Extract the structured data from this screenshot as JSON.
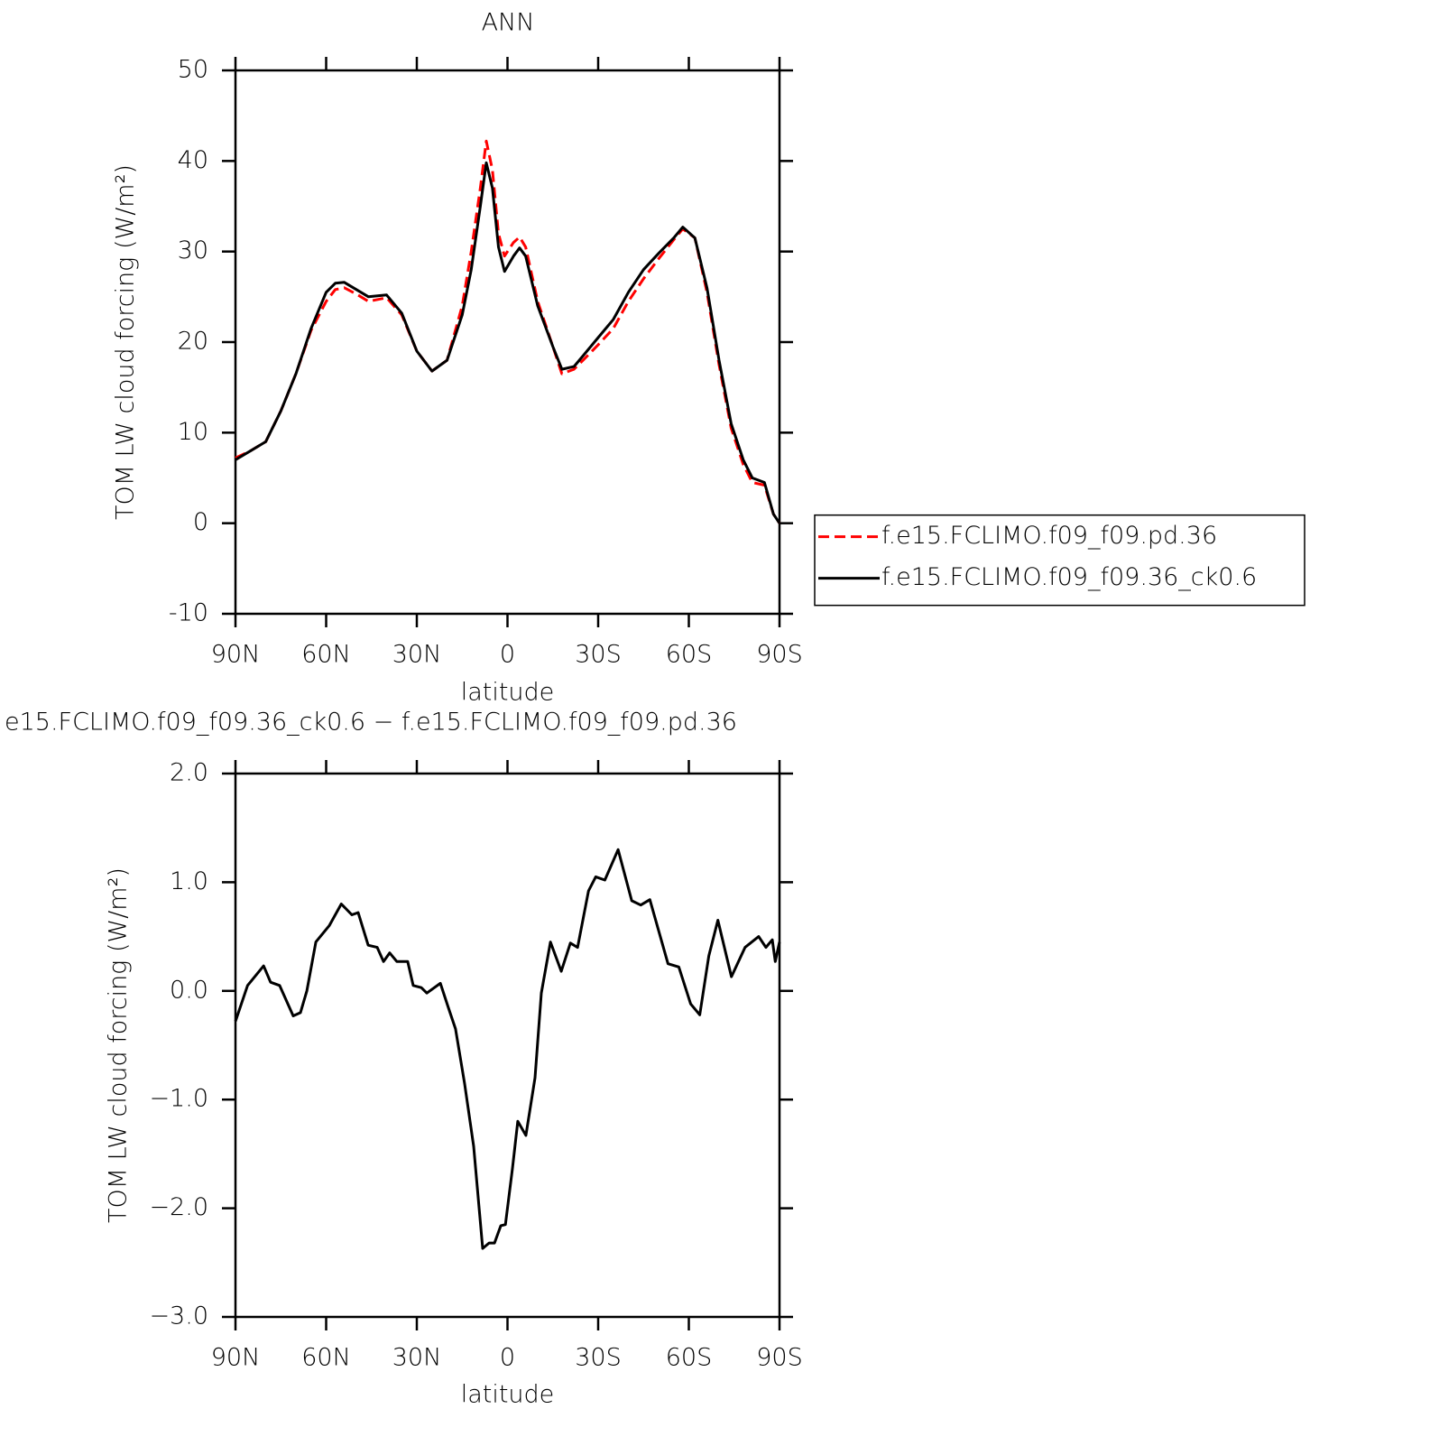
{
  "chart_data": [
    {
      "type": "line",
      "title": "ANN",
      "xlabel": "latitude",
      "ylabel": "TOM LW cloud forcing (W/m²)",
      "x": [
        90,
        85,
        80,
        75,
        70,
        65,
        60,
        57,
        54,
        50,
        46,
        40,
        35,
        30,
        25,
        20,
        15,
        12,
        9,
        7,
        5,
        3,
        1,
        -2,
        -4,
        -6,
        -10,
        -15,
        -18,
        -22,
        -25,
        -30,
        -35,
        -40,
        -45,
        -50,
        -55,
        -58,
        -62,
        -66,
        -70,
        -74,
        -78,
        -81,
        -85,
        -88,
        -90
      ],
      "xlim": [
        90,
        -90
      ],
      "xticks": [
        {
          "value": 90,
          "label": "90N"
        },
        {
          "value": 60,
          "label": "60N"
        },
        {
          "value": 30,
          "label": "30N"
        },
        0,
        {
          "value": -30,
          "label": "30S"
        },
        {
          "value": -60,
          "label": "60S"
        },
        {
          "value": -90,
          "label": "90S"
        }
      ],
      "ylim": [
        -10,
        50
      ],
      "yticks": [
        -10,
        0,
        10,
        20,
        30,
        40,
        50
      ],
      "legend": "right",
      "series": [
        {
          "name": "f.e15.FCLIMO.f09_f09.pd.36",
          "color": "#ff0000",
          "line_style": "dashed",
          "values": [
            7.2,
            8.0,
            9.0,
            12.4,
            16.5,
            21.3,
            24.5,
            25.8,
            26.0,
            25.3,
            24.5,
            24.9,
            23.0,
            19.0,
            16.8,
            18.0,
            24.0,
            30.0,
            37.0,
            42.2,
            39.0,
            32.0,
            29.5,
            31.0,
            31.6,
            30.5,
            24.5,
            19.5,
            16.5,
            17.0,
            18.0,
            19.7,
            21.5,
            24.5,
            27.0,
            29.2,
            31.3,
            32.5,
            31.5,
            25.5,
            17.5,
            10.5,
            6.5,
            4.5,
            4.2,
            1.0,
            0
          ]
        },
        {
          "name": "f.e15.FCLIMO.f09_f09.36_ck0.6",
          "color": "#000000",
          "line_style": "solid",
          "values": [
            7.0,
            8.0,
            9.0,
            12.4,
            16.5,
            21.5,
            25.5,
            26.5,
            26.6,
            25.8,
            25.0,
            25.2,
            23.2,
            19.0,
            16.8,
            18.0,
            23.0,
            28.0,
            35.0,
            39.8,
            37.0,
            30.5,
            27.8,
            29.5,
            30.4,
            29.5,
            24.0,
            19.5,
            17.0,
            17.3,
            18.5,
            20.5,
            22.5,
            25.5,
            28.0,
            29.8,
            31.5,
            32.7,
            31.5,
            26.0,
            18.0,
            11.0,
            7.0,
            5.0,
            4.5,
            1.0,
            0
          ]
        }
      ]
    },
    {
      "type": "line",
      "title": "e15.FCLIMO.f09_f09.36_ck0.6 − f.e15.FCLIMO.f09_f09.pd.36",
      "xlabel": "latitude",
      "ylabel": "TOM LW cloud forcing (W/m²)",
      "x": [
        90,
        86,
        80.7,
        78.4,
        75.4,
        70.9,
        68.5,
        66.4,
        63.4,
        59,
        55,
        51.5,
        49.4,
        46.1,
        43.1,
        41,
        39,
        36.6,
        33,
        31.2,
        28.5,
        26.7,
        22.2,
        19.6,
        17.2,
        14.2,
        11.2,
        8.2,
        6.1,
        4.3,
        2.2,
        0.7,
        -1.6,
        -3.4,
        -6.1,
        -9.1,
        -11.2,
        -14.2,
        -17.8,
        -20.8,
        -23.2,
        -26.8,
        -29.2,
        -32.2,
        -36.6,
        -41.1,
        -44.1,
        -47.1,
        -53.1,
        -56.7,
        -60.6,
        -63.6,
        -66.6,
        -69.6,
        -74.1,
        -78.6,
        -83.1,
        -85.5,
        -87.6,
        -88.6,
        -90
      ],
      "xlim": [
        90,
        -90
      ],
      "xticks": [
        {
          "value": 90,
          "label": "90N"
        },
        {
          "value": 60,
          "label": "60N"
        },
        {
          "value": 30,
          "label": "30N"
        },
        0,
        {
          "value": -30,
          "label": "30S"
        },
        {
          "value": -60,
          "label": "60S"
        },
        {
          "value": -90,
          "label": "90S"
        }
      ],
      "ylim": [
        -3,
        2
      ],
      "yticks": [
        {
          "value": -3,
          "label": "−3.0"
        },
        {
          "value": -2,
          "label": "−2.0"
        },
        {
          "value": -1,
          "label": "−1.0"
        },
        {
          "value": 0,
          "label": "0.0"
        },
        {
          "value": 1,
          "label": "1.0"
        },
        {
          "value": 2,
          "label": "2.0"
        }
      ],
      "series": [
        {
          "color": "#000000",
          "line_style": "solid",
          "values": [
            -0.28,
            0.05,
            0.23,
            0.08,
            0.05,
            -0.23,
            -0.2,
            0,
            0.45,
            0.6,
            0.8,
            0.7,
            0.72,
            0.42,
            0.4,
            0.27,
            0.35,
            0.27,
            0.27,
            0.05,
            0.03,
            -0.02,
            0.07,
            -0.15,
            -0.35,
            -0.85,
            -1.43,
            -2.37,
            -2.32,
            -2.32,
            -2.16,
            -2.15,
            -1.64,
            -1.2,
            -1.33,
            -0.8,
            -0.02,
            0.45,
            0.18,
            0.44,
            0.4,
            0.92,
            1.05,
            1.02,
            1.3,
            0.83,
            0.79,
            0.84,
            0.25,
            0.22,
            -0.12,
            -0.22,
            0.32,
            0.65,
            0.13,
            0.4,
            0.5,
            0.4,
            0.47,
            0.27,
            0.45
          ]
        }
      ]
    }
  ]
}
